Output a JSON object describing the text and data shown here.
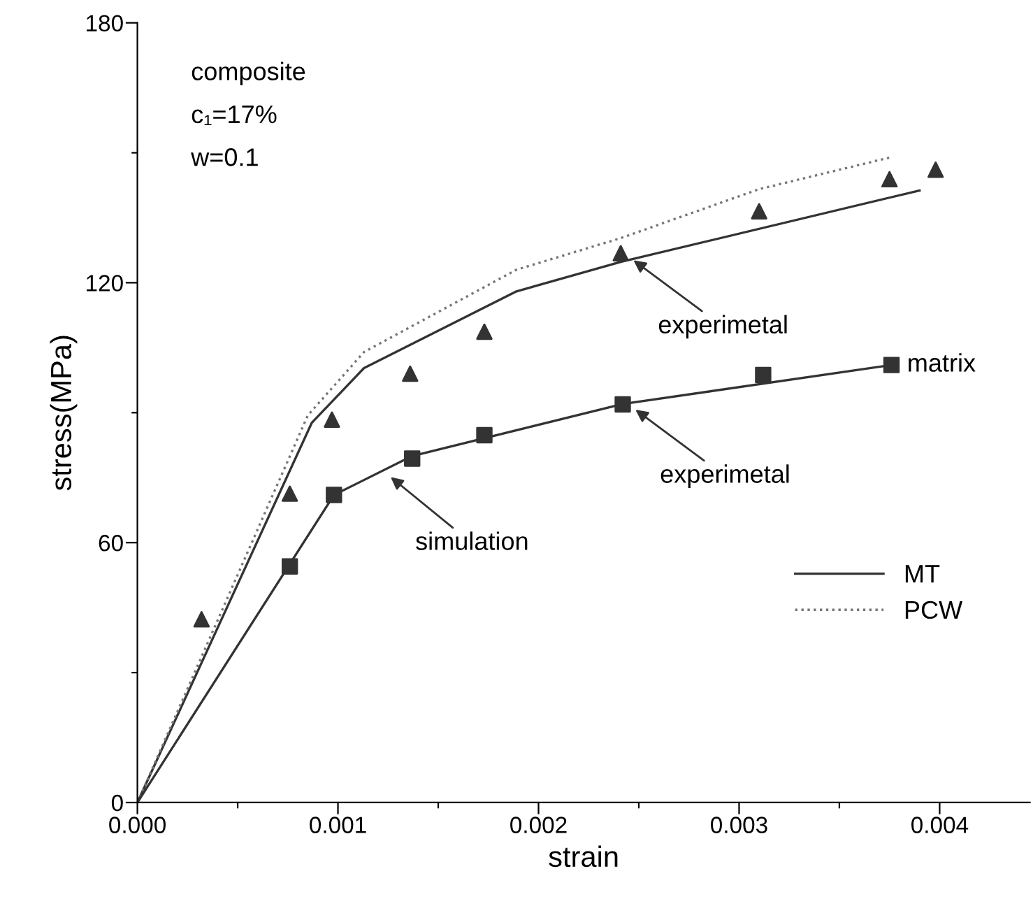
{
  "chart_data": {
    "type": "line",
    "xlabel": "strain",
    "ylabel": "stress(MPa)",
    "xlim": [
      0,
      0.00445
    ],
    "ylim": [
      0,
      180
    ],
    "xticks": [
      {
        "value": 0,
        "label": "0.000"
      },
      {
        "value": 0.0005,
        "label": null
      },
      {
        "value": 0.001,
        "label": "0.001"
      },
      {
        "value": 0.0015,
        "label": null
      },
      {
        "value": 0.002,
        "label": "0.002"
      },
      {
        "value": 0.0025,
        "label": null
      },
      {
        "value": 0.003,
        "label": "0.003"
      },
      {
        "value": 0.0035,
        "label": null
      },
      {
        "value": 0.004,
        "label": "0.004"
      }
    ],
    "yticks": [
      0,
      {
        "value": 30,
        "label": null
      },
      60,
      {
        "value": 90,
        "label": null
      },
      120,
      {
        "value": 150,
        "label": null
      },
      180
    ],
    "grid": false,
    "legend": "bottom right",
    "series": [
      {
        "name": "MT",
        "line_style": "solid",
        "color": "#333333",
        "x": [
          0,
          0.00087,
          0.00113,
          0.00189,
          0.00241,
          0.0039
        ],
        "values": [
          0,
          87.7,
          100.3,
          118,
          124.8,
          141.3
        ]
      },
      {
        "name": "PCW",
        "line_style": "dotted",
        "color": "#777777",
        "x": [
          0,
          0.00085,
          0.00113,
          0.00189,
          0.00241,
          0.0031,
          0.00376
        ],
        "values": [
          0,
          89.4,
          104,
          123,
          130.3,
          141.6,
          149
        ]
      },
      {
        "line_style": "solid",
        "color": "#333333",
        "x": [
          0,
          0.00098,
          0.00137,
          0.00242,
          0.00376
        ],
        "values": [
          0,
          71,
          80,
          92,
          101
        ]
      },
      {
        "type": "scatter",
        "marker": "triangle",
        "color": "#333333",
        "x": [
          0.00032,
          0.00076,
          0.00097,
          0.00136,
          0.00173,
          0.00241,
          0.0031,
          0.00375,
          0.00398
        ],
        "values": [
          42.3,
          71.3,
          88.4,
          99,
          108.7,
          126.8,
          136.5,
          143.9,
          146.1
        ]
      },
      {
        "name": "matrix",
        "type": "scatter",
        "marker": "square",
        "color": "#333333",
        "x": [
          0.00076,
          0.00098,
          0.00137,
          0.00173,
          0.00242,
          0.00312,
          0.00376
        ],
        "values": [
          54.5,
          71,
          79.4,
          84.8,
          91.9,
          98.7,
          101
        ]
      }
    ],
    "annotations": [
      "composite",
      "c₁=17%",
      "w=0.1",
      {
        "text": "experimetal",
        "x": 0.00245,
        "y": 126
      },
      {
        "text": "experimetal",
        "x": 0.00246,
        "y": 91.5
      },
      {
        "text": "simulation",
        "x": 0.00124,
        "y": 76
      }
    ]
  }
}
